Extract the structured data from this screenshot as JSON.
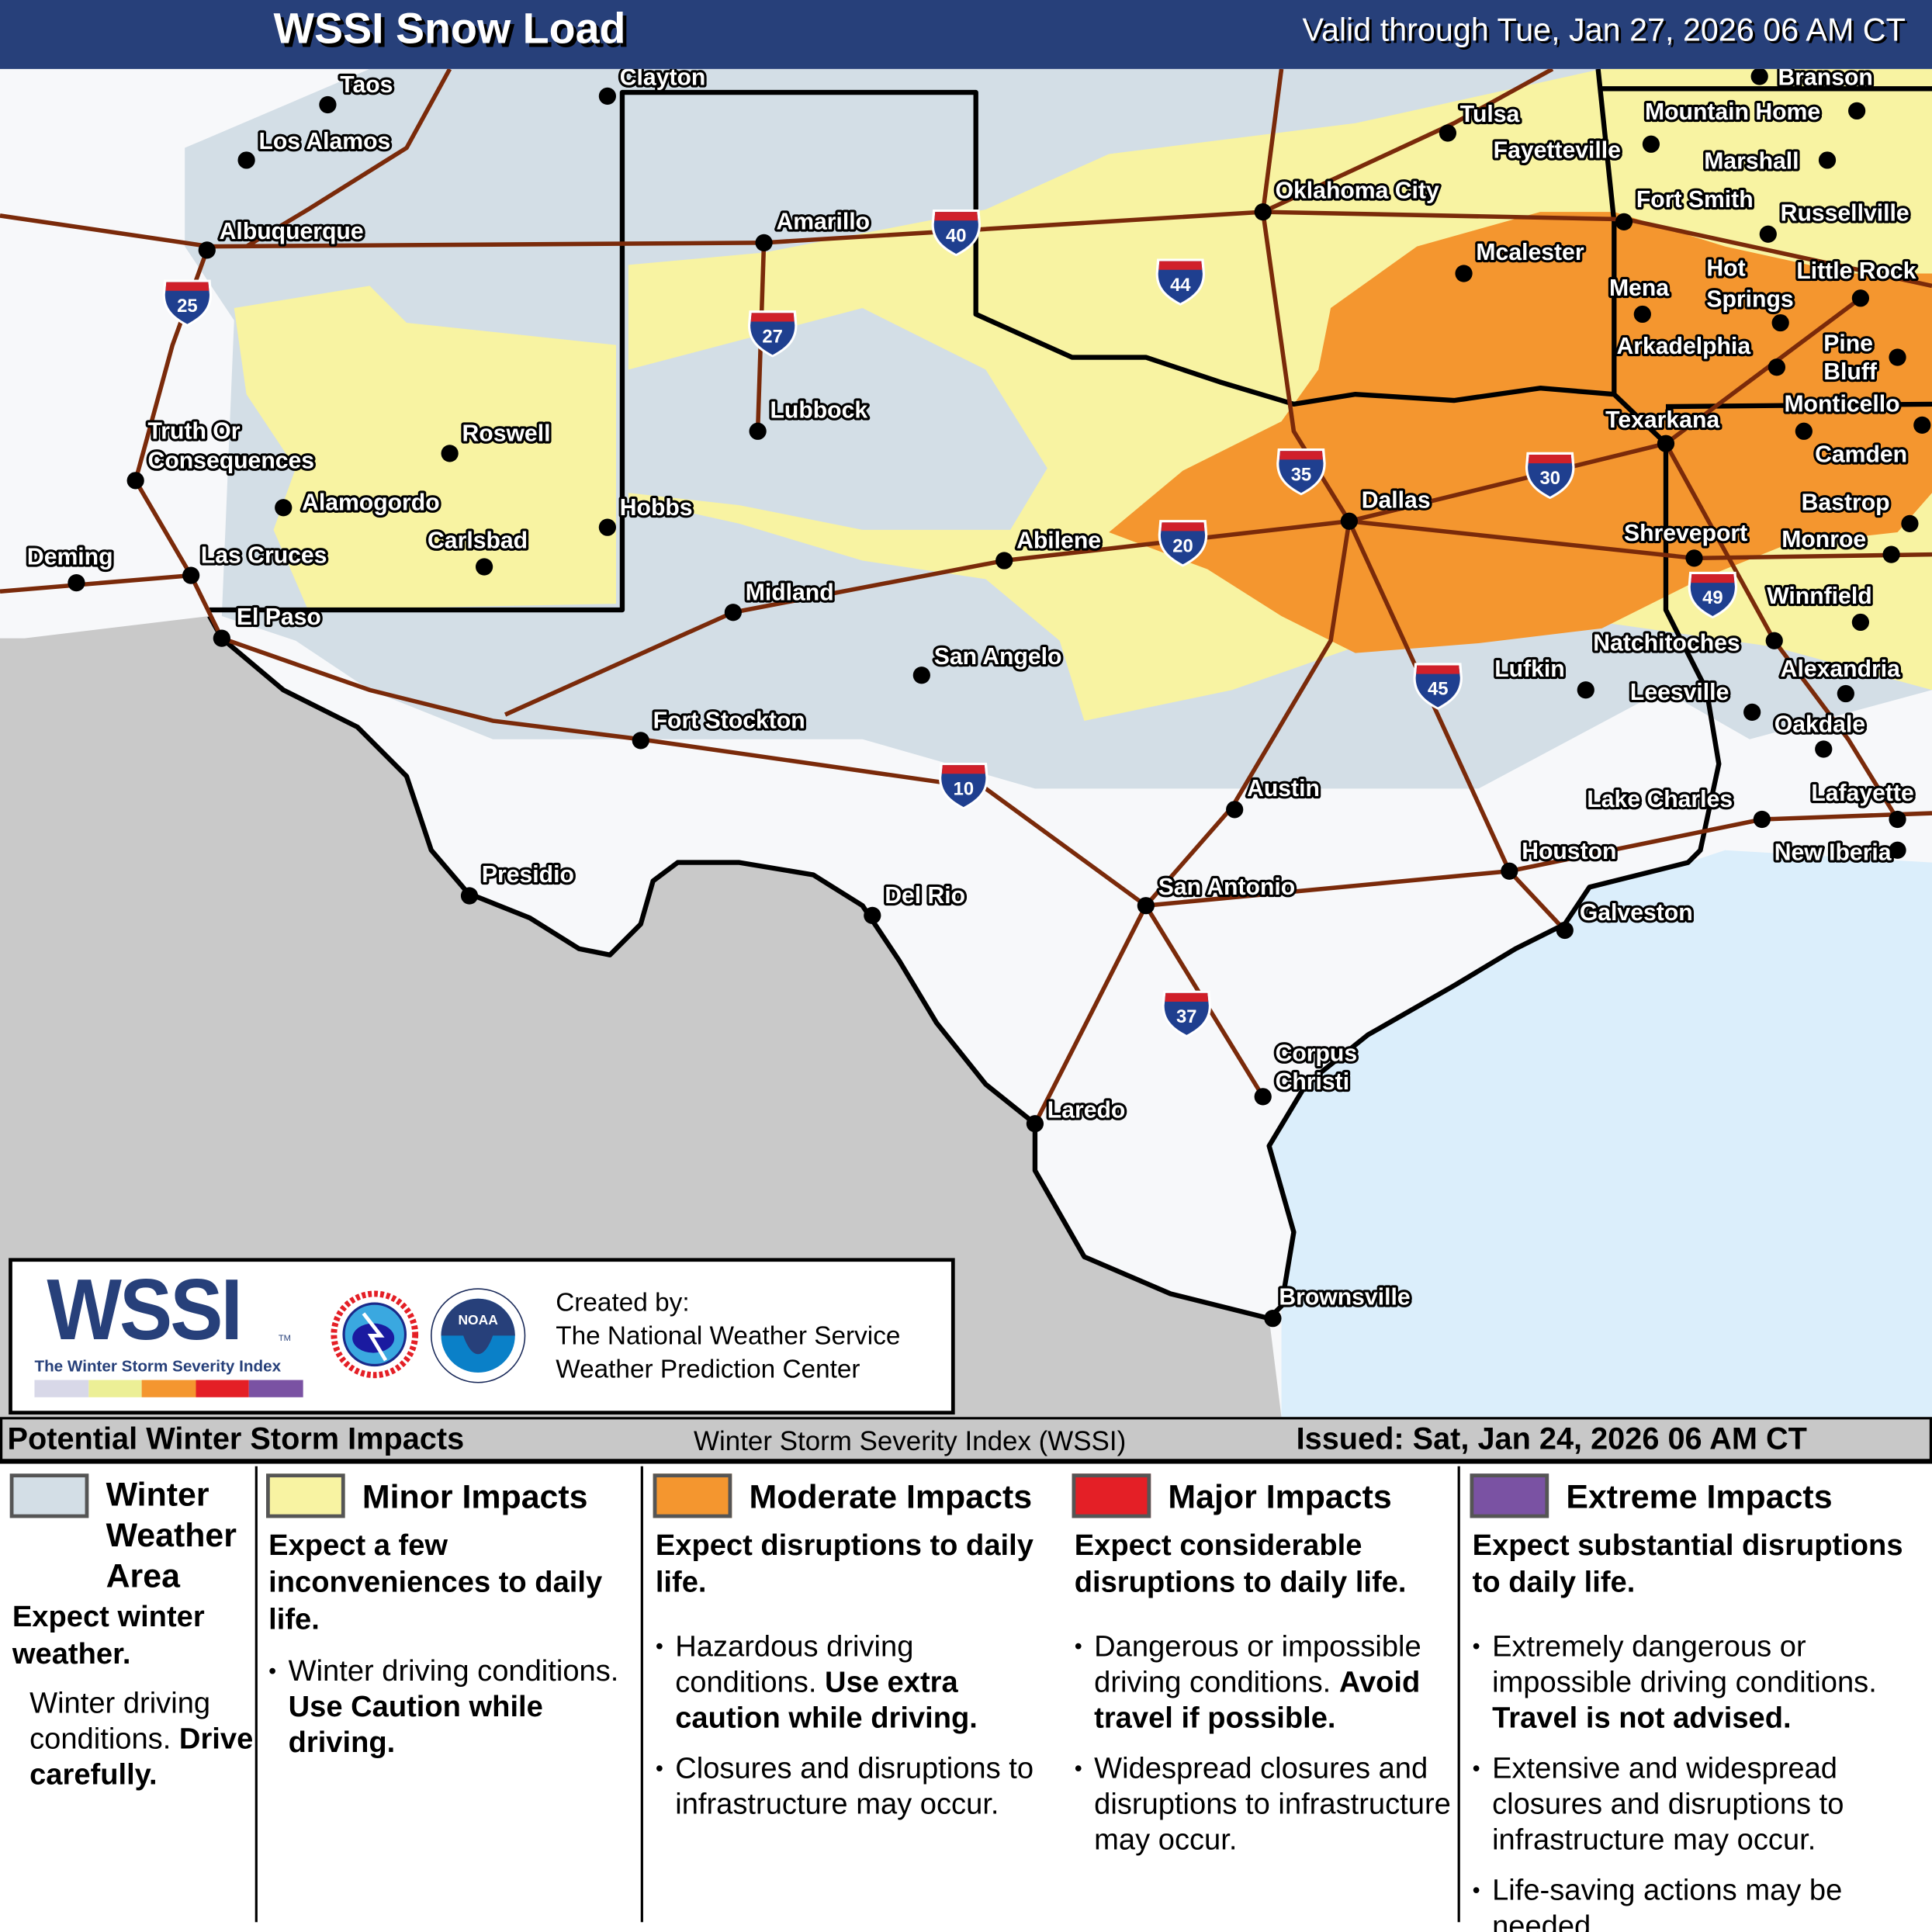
{
  "header": {
    "title": "WSSI Snow Load",
    "valid": "Valid through Tue, Jan 27, 2026 06 AM CT"
  },
  "colors": {
    "header_bg": "#27407a",
    "winter_weather_area": "#d3dee6",
    "minor": "#f8f3a2",
    "moderate": "#f4962f",
    "major": "#e41f26",
    "extreme": "#7a52a3",
    "land": "#f7f8fa",
    "mexico": "#c9c9c9",
    "water": "#dbeefb",
    "interstate": "#7a2a0a"
  },
  "map": {
    "interstates": [
      "25",
      "40",
      "44",
      "27",
      "35",
      "30",
      "20",
      "49",
      "45",
      "10",
      "37"
    ],
    "cities": [
      {
        "name": "Taos"
      },
      {
        "name": "Los Alamos"
      },
      {
        "name": "Clayton"
      },
      {
        "name": "Albuquerque"
      },
      {
        "name": "Amarillo"
      },
      {
        "name": "Oklahoma City"
      },
      {
        "name": "Tulsa"
      },
      {
        "name": "Fayetteville"
      },
      {
        "name": "Branson"
      },
      {
        "name": "Mountain Home"
      },
      {
        "name": "Marshall"
      },
      {
        "name": "Fort Smith"
      },
      {
        "name": "Russellville"
      },
      {
        "name": "Mcalester"
      },
      {
        "name": "Mena"
      },
      {
        "name": "Hot Springs"
      },
      {
        "name": "Little Rock"
      },
      {
        "name": "Arkadelphia"
      },
      {
        "name": "Pine Bluff"
      },
      {
        "name": "Monticello"
      },
      {
        "name": "Lubbock"
      },
      {
        "name": "Roswell"
      },
      {
        "name": "Truth Or Consequences"
      },
      {
        "name": "Alamogordo"
      },
      {
        "name": "Carlsbad"
      },
      {
        "name": "Hobbs"
      },
      {
        "name": "Texarkana"
      },
      {
        "name": "Camden"
      },
      {
        "name": "Dallas"
      },
      {
        "name": "Bastrop"
      },
      {
        "name": "Shreveport"
      },
      {
        "name": "Monroe"
      },
      {
        "name": "Abilene"
      },
      {
        "name": "Las Cruces"
      },
      {
        "name": "Deming"
      },
      {
        "name": "Midland"
      },
      {
        "name": "El Paso"
      },
      {
        "name": "Winnfield"
      },
      {
        "name": "Natchitoches"
      },
      {
        "name": "Alexandria"
      },
      {
        "name": "San Angelo"
      },
      {
        "name": "Lufkin"
      },
      {
        "name": "Leesville"
      },
      {
        "name": "Oakdale"
      },
      {
        "name": "Fort Stockton"
      },
      {
        "name": "Austin"
      },
      {
        "name": "Lake Charles"
      },
      {
        "name": "Lafayette"
      },
      {
        "name": "Houston"
      },
      {
        "name": "New Iberia"
      },
      {
        "name": "Presidio"
      },
      {
        "name": "Del Rio"
      },
      {
        "name": "San Antonio"
      },
      {
        "name": "Galveston"
      },
      {
        "name": "Corpus Christi"
      },
      {
        "name": "Laredo"
      },
      {
        "name": "Brownsville"
      }
    ]
  },
  "logo": {
    "wssi": "WSSI",
    "tm": "TM",
    "subtitle": "The Winter Storm Severity Index",
    "nws_ring": "NATIONAL WEATHER SERVICE",
    "noaa": "NOAA",
    "credits": [
      "Created by:",
      "The National Weather Service",
      "Weather Prediction Center"
    ]
  },
  "legend": {
    "left": "Potential Winter Storm Impacts",
    "middle": "Winter Storm Severity Index (WSSI)",
    "issued": "Issued: Sat, Jan 24, 2026 06 AM CT",
    "columns": [
      {
        "title_lines": [
          "Winter",
          "Weather",
          "Area"
        ],
        "subtitle": "Expect winter weather.",
        "note": "Winter driving conditions.",
        "note_bold": "Drive carefully."
      },
      {
        "title": "Minor Impacts",
        "subtitle": "Expect a few inconveniences to daily life.",
        "bullets": [
          {
            "text": "Winter driving conditions.",
            "bold": "Use Caution while driving."
          }
        ]
      },
      {
        "title": "Moderate Impacts",
        "subtitle": "Expect disruptions to daily life.",
        "bullets": [
          {
            "text": "Hazardous driving conditions.",
            "bold": "Use extra caution while driving."
          },
          {
            "text": "Closures and disruptions to infrastructure may occur.",
            "bold": ""
          }
        ]
      },
      {
        "title": "Major Impacts",
        "subtitle": "Expect considerable disruptions to daily life.",
        "bullets": [
          {
            "text": "Dangerous or impossible driving conditions.",
            "bold": "Avoid travel if possible."
          },
          {
            "text": "Widespread closures and disruptions to infrastructure may occur.",
            "bold": ""
          }
        ]
      },
      {
        "title": "Extreme Impacts",
        "subtitle": "Expect substantial disruptions to daily life.",
        "bullets": [
          {
            "text": "Extremely dangerous or impossible driving conditions.",
            "bold": "Travel is not advised."
          },
          {
            "text": "Extensive and widespread closures and disruptions to infrastructure may occur.",
            "bold": ""
          },
          {
            "text": "Life-saving actions may be needed.",
            "bold": ""
          }
        ]
      }
    ]
  }
}
